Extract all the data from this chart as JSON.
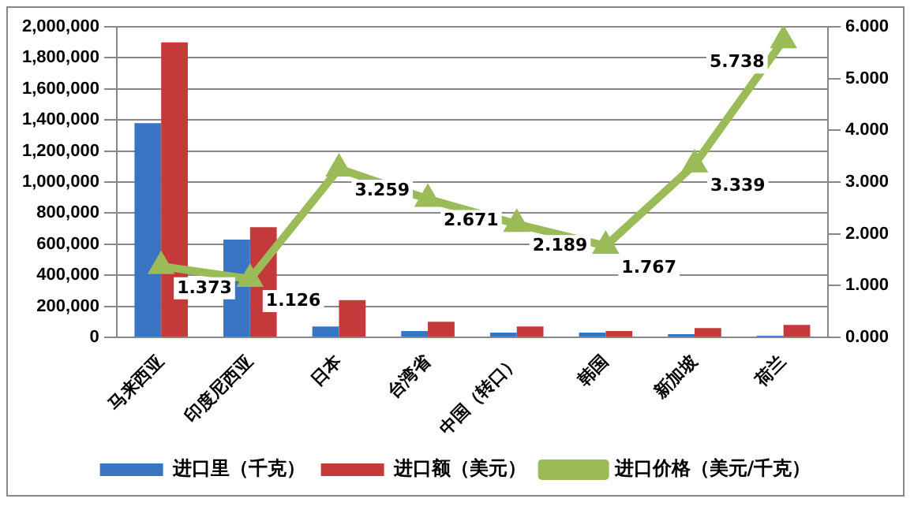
{
  "chart_data": {
    "type": "bar",
    "categories": [
      "马来西亚",
      "印度尼西亚",
      "日本",
      "台湾省",
      "中国（转口）",
      "韩国",
      "新加坡",
      "荷兰"
    ],
    "series": [
      {
        "name": "进口里（千克）",
        "color": "#3a75c4",
        "values": [
          1380000,
          630000,
          70000,
          40000,
          30000,
          30000,
          20000,
          10000
        ]
      },
      {
        "name": "进口额（美元）",
        "color": "#c43a3a",
        "values": [
          1900000,
          710000,
          240000,
          100000,
          70000,
          40000,
          60000,
          80000
        ]
      },
      {
        "name": "进口价格（美元/千克）",
        "type": "line",
        "axis": "y2",
        "color": "#9bbb59",
        "marker": "triangle",
        "values": [
          1.373,
          1.126,
          3.259,
          2.671,
          2.189,
          1.767,
          3.339,
          5.738
        ],
        "value_labels": [
          "1.373",
          "1.126",
          "3.259",
          "2.671",
          "2.189",
          "1.767",
          "3.339",
          "5.738"
        ]
      }
    ],
    "ylim": [
      0,
      2000000
    ],
    "yticks": [
      0,
      {
        "value": 200000,
        "label": "200,000"
      },
      {
        "value": 400000,
        "label": "400,000"
      },
      {
        "value": 600000,
        "label": "600,000"
      },
      {
        "value": 800000,
        "label": "800,000"
      },
      {
        "value": 1000000,
        "label": "1,000,000"
      },
      {
        "value": 1200000,
        "label": "1,200,000"
      },
      {
        "value": 1400000,
        "label": "1,400,000"
      },
      {
        "value": 1600000,
        "label": "1,600,000"
      },
      {
        "value": 1800000,
        "label": "1,800,000"
      },
      {
        "value": 2000000,
        "label": "2,000,000"
      }
    ],
    "y2lim": [
      0,
      6
    ],
    "y2ticks": [
      {
        "value": 0,
        "label": "0.000"
      },
      {
        "value": 1,
        "label": "1.000"
      },
      {
        "value": 2,
        "label": "2.000"
      },
      {
        "value": 3,
        "label": "3.000"
      },
      {
        "value": 4,
        "label": "4.000"
      },
      {
        "value": 5,
        "label": "5.000"
      },
      {
        "value": 6,
        "label": "6.000"
      }
    ],
    "grid": "y",
    "legend": "bottom"
  }
}
